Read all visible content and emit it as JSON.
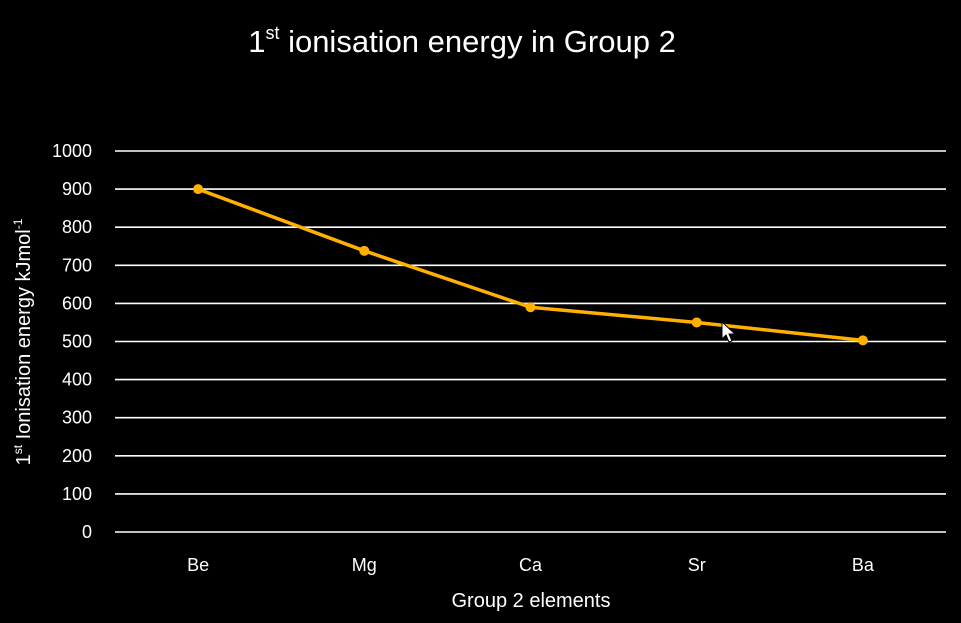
{
  "chart_data": {
    "type": "line",
    "title": {
      "main": "1",
      "superscript": "st",
      "rest": " ionisation energy in Group 2"
    },
    "xlabel": "Group 2 elements",
    "ylabel": {
      "main": "1",
      "superscript": "st",
      "rest": " Ionisation energy kJmol",
      "unit_superscript": "-1"
    },
    "categories": [
      "Be",
      "Mg",
      "Ca",
      "Sr",
      "Ba"
    ],
    "series": [
      {
        "values": [
          900,
          738,
          590,
          550,
          503
        ],
        "color": "#FFB000"
      }
    ],
    "ylim": [
      0,
      1000
    ],
    "y_ticks": [
      0,
      100,
      200,
      300,
      400,
      500,
      600,
      700,
      800,
      900,
      1000
    ],
    "grid": true,
    "background": "#000000",
    "text_color": "#ffffff",
    "grid_color": "#ffffff"
  }
}
